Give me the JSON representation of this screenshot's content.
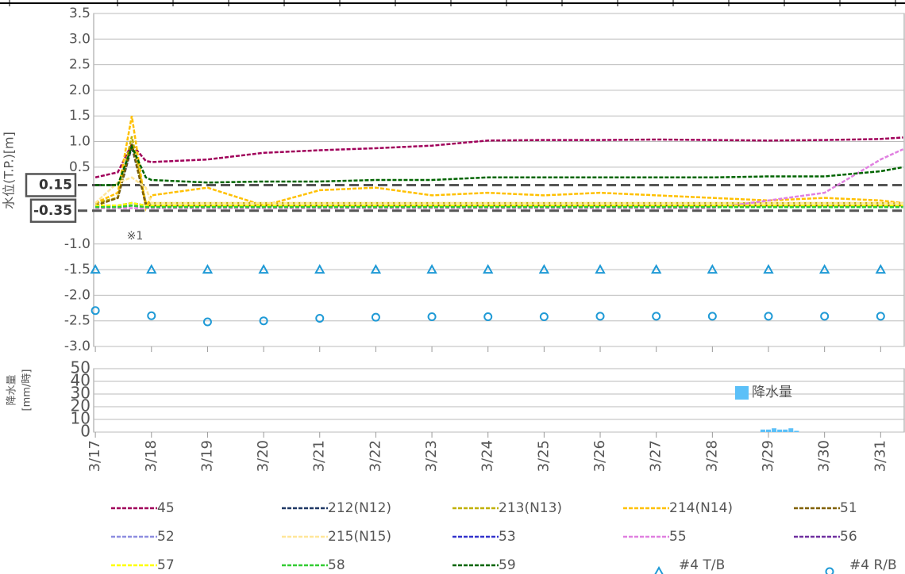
{
  "chart_data": [
    {
      "type": "line",
      "y_label": "水位(T.P.)[m]",
      "annotation": "※1",
      "xlim": [
        16.97,
        31.42
      ],
      "ylim": [
        -3,
        3.5
      ],
      "yticks": [
        3.5,
        {
          "value": 3,
          "label": "3.0"
        },
        2.5,
        {
          "value": 2,
          "label": "2.0"
        },
        1.5,
        {
          "value": 1,
          "label": "1.0"
        },
        0.5,
        {
          "value": -1,
          "label": "-1.0"
        },
        -1.5,
        {
          "value": -2,
          "label": "-2.0"
        },
        -2.5,
        {
          "value": -3,
          "label": "-3.0"
        }
      ],
      "reference_lines": [
        0.15,
        -0.35
      ],
      "grid": true,
      "legend": "bottom",
      "x": [
        17,
        17.4,
        17.65,
        17.9,
        18,
        19,
        20,
        21,
        22,
        23,
        24,
        25,
        26,
        27,
        28,
        29,
        30,
        31,
        31.4
      ],
      "series": [
        {
          "name": "45",
          "color": "#a0005a",
          "values": [
            0.3,
            0.4,
            0.95,
            0.62,
            0.6,
            0.65,
            0.78,
            0.83,
            0.87,
            0.92,
            1.02,
            1.03,
            1.03,
            1.04,
            1.03,
            1.02,
            1.03,
            1.05,
            1.08
          ]
        },
        {
          "name": "212(N12)",
          "color": "#1f3864",
          "values": [
            -0.2,
            -0.1,
            0.9,
            -0.2,
            -0.25,
            -0.25,
            -0.25,
            -0.25,
            -0.25,
            -0.25,
            -0.25,
            -0.25,
            -0.25,
            -0.25,
            -0.25,
            -0.25,
            -0.25,
            -0.25,
            -0.25
          ]
        },
        {
          "name": "213(N13)",
          "color": "#c0b000",
          "values": [
            -0.2,
            -0.1,
            1.1,
            -0.2,
            -0.2,
            -0.2,
            -0.2,
            -0.2,
            -0.2,
            -0.2,
            -0.2,
            -0.2,
            -0.2,
            -0.2,
            -0.2,
            -0.2,
            -0.2,
            -0.2,
            -0.2
          ]
        },
        {
          "name": "214(N14)",
          "color": "#ffc000",
          "values": [
            -0.2,
            0,
            1.5,
            -0.3,
            -0.05,
            0.1,
            -0.25,
            0.05,
            0.1,
            -0.05,
            0,
            -0.05,
            0,
            -0.05,
            -0.1,
            -0.15,
            -0.1,
            -0.15,
            -0.2
          ]
        },
        {
          "name": "51",
          "color": "#806000",
          "values": [
            -0.25,
            -0.1,
            0.95,
            -0.25,
            -0.25,
            -0.25,
            -0.25,
            -0.25,
            -0.25,
            -0.25,
            -0.25,
            -0.25,
            -0.25,
            -0.25,
            -0.25,
            -0.25,
            -0.25,
            -0.25,
            -0.25
          ]
        },
        {
          "name": "52",
          "color": "#8e8ee0",
          "values": [
            -0.25,
            -0.25,
            -0.2,
            -0.25,
            -0.25,
            -0.25,
            -0.25,
            -0.25,
            -0.25,
            -0.25,
            -0.25,
            -0.25,
            -0.25,
            -0.25,
            -0.25,
            -0.25,
            -0.25,
            -0.25,
            -0.25
          ]
        },
        {
          "name": "215(N15)",
          "color": "#ffe699",
          "values": [
            -0.2,
            0.2,
            0.3,
            0.1,
            -0.2,
            -0.2,
            -0.2,
            -0.2,
            -0.2,
            -0.2,
            -0.2,
            -0.2,
            -0.2,
            -0.2,
            -0.2,
            -0.2,
            -0.2,
            -0.2,
            -0.2
          ]
        },
        {
          "name": "53",
          "color": "#3333cc",
          "values": [
            -0.28,
            -0.28,
            -0.25,
            -0.28,
            -0.28,
            -0.28,
            -0.28,
            -0.28,
            -0.28,
            -0.28,
            -0.28,
            -0.28,
            -0.28,
            -0.28,
            -0.28,
            -0.28,
            -0.28,
            -0.28,
            -0.28
          ]
        },
        {
          "name": "55",
          "color": "#e080e0",
          "values": [
            -0.3,
            -0.3,
            -0.3,
            -0.3,
            -0.3,
            -0.3,
            -0.3,
            -0.3,
            -0.3,
            -0.3,
            -0.3,
            -0.3,
            -0.3,
            -0.3,
            -0.3,
            -0.15,
            0,
            0.65,
            0.85
          ]
        },
        {
          "name": "56",
          "color": "#7030a0",
          "values": [
            -0.25,
            -0.25,
            -0.2,
            -0.25,
            -0.25,
            -0.25,
            -0.25,
            -0.25,
            -0.25,
            -0.25,
            -0.25,
            -0.25,
            -0.25,
            -0.25,
            -0.25,
            -0.25,
            -0.25,
            -0.25,
            -0.25
          ]
        },
        {
          "name": "57",
          "color": "#ffff00",
          "values": [
            -0.25,
            -0.25,
            -0.2,
            -0.25,
            -0.25,
            -0.25,
            -0.25,
            -0.25,
            -0.25,
            -0.25,
            -0.25,
            -0.25,
            -0.25,
            -0.25,
            -0.25,
            -0.25,
            -0.25,
            -0.25,
            -0.25
          ]
        },
        {
          "name": "58",
          "color": "#33cc33",
          "values": [
            -0.28,
            -0.28,
            -0.25,
            -0.28,
            -0.28,
            -0.28,
            -0.28,
            -0.28,
            -0.28,
            -0.28,
            -0.28,
            -0.28,
            -0.28,
            -0.28,
            -0.28,
            -0.28,
            -0.28,
            -0.28,
            -0.28
          ]
        },
        {
          "name": "59",
          "color": "#006400",
          "values": [
            0.15,
            0.15,
            0.9,
            0.3,
            0.25,
            0.2,
            0.22,
            0.22,
            0.25,
            0.25,
            0.3,
            0.3,
            0.3,
            0.3,
            0.3,
            0.32,
            0.32,
            0.42,
            0.5
          ]
        },
        {
          "name": "#4 T/B",
          "color": "#1f9ad6",
          "marker": "triangle",
          "x": [
            17,
            18,
            19,
            20,
            21,
            22,
            23,
            24,
            25,
            26,
            27,
            28,
            29,
            30,
            31
          ],
          "values": [
            -1.5,
            -1.5,
            -1.5,
            -1.5,
            -1.5,
            -1.5,
            -1.5,
            -1.5,
            -1.5,
            -1.5,
            -1.5,
            -1.5,
            -1.5,
            -1.5,
            -1.5
          ]
        },
        {
          "name": "#4 R/B",
          "color": "#1f9ad6",
          "marker": "circle",
          "x": [
            17,
            18,
            19,
            20,
            21,
            22,
            23,
            24,
            25,
            26,
            27,
            28,
            29,
            30,
            31
          ],
          "values": [
            -2.3,
            -2.4,
            -2.52,
            -2.5,
            -2.45,
            -2.43,
            -2.42,
            -2.42,
            -2.42,
            -2.41,
            -2.41,
            -2.41,
            -2.41,
            -2.41,
            -2.41
          ]
        }
      ]
    },
    {
      "type": "bar",
      "y_label": "降水量",
      "y_unit": "[mm/時]",
      "xlim": [
        16.97,
        31.42
      ],
      "ylim": [
        0,
        50
      ],
      "yticks": [
        0,
        10,
        20,
        30,
        40,
        50
      ],
      "xticks": [
        {
          "value": 17,
          "label": "3/17"
        },
        {
          "value": 18,
          "label": "3/18"
        },
        {
          "value": 19,
          "label": "3/19"
        },
        {
          "value": 20,
          "label": "3/20"
        },
        {
          "value": 21,
          "label": "3/21"
        },
        {
          "value": 22,
          "label": "3/22"
        },
        {
          "value": 23,
          "label": "3/23"
        },
        {
          "value": 24,
          "label": "3/24"
        },
        {
          "value": 25,
          "label": "3/25"
        },
        {
          "value": 26,
          "label": "3/26"
        },
        {
          "value": 27,
          "label": "3/27"
        },
        {
          "value": 28,
          "label": "3/28"
        },
        {
          "value": 29,
          "label": "3/29"
        },
        {
          "value": 30,
          "label": "3/30"
        },
        {
          "value": 31,
          "label": "3/31"
        }
      ],
      "grid": true,
      "legend": "upper right",
      "series": [
        {
          "name": "降水量",
          "color": "#5bc0f8",
          "x": [
            28.9,
            29,
            29.1,
            29.2,
            29.3,
            29.4,
            29.5
          ],
          "values": [
            2,
            2,
            3,
            2,
            2,
            3,
            1
          ]
        }
      ]
    }
  ]
}
